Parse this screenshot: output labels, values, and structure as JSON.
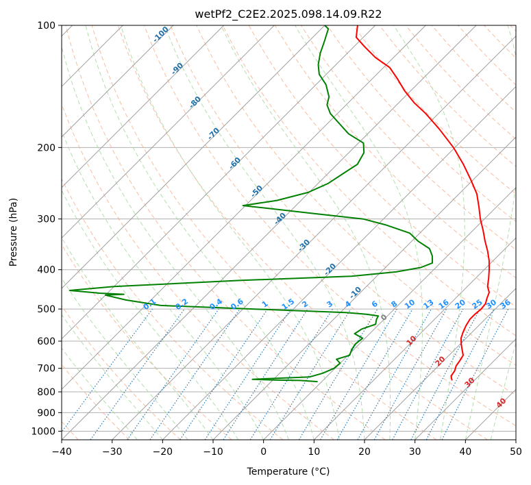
{
  "chart_data": {
    "type": "skew-t",
    "title": "wetPf2_C2E2.2025.098.14.09.R22",
    "xlabel": "Temperature (°C)",
    "ylabel": "Pressure (hPa)",
    "xlim": [
      -40,
      50
    ],
    "ylim": [
      1050,
      100
    ],
    "y_scale": "log",
    "x_ticks": [
      -40,
      -30,
      -20,
      -10,
      0,
      10,
      20,
      30,
      40,
      50
    ],
    "x_tick_labels": [
      "−40",
      "−30",
      "−20",
      "−10",
      "0",
      "10",
      "20",
      "30",
      "40",
      "50"
    ],
    "y_ticks": [
      100,
      200,
      300,
      400,
      500,
      600,
      700,
      800,
      900,
      1000
    ],
    "y_tick_labels": [
      "100",
      "200",
      "300",
      "400",
      "500",
      "600",
      "700",
      "800",
      "900",
      "1000"
    ],
    "grid": true,
    "series": [
      {
        "kind": "temperature",
        "color": "#ff0000",
        "points": [
          [
            25.6,
            750
          ],
          [
            25.0,
            740
          ],
          [
            24.5,
            730
          ],
          [
            24.2,
            710
          ],
          [
            23.5,
            690
          ],
          [
            23.2,
            670
          ],
          [
            22.8,
            650
          ],
          [
            21.5,
            630
          ],
          [
            20.2,
            610
          ],
          [
            19.0,
            590
          ],
          [
            18.2,
            570
          ],
          [
            17.5,
            550
          ],
          [
            17.0,
            530
          ],
          [
            17.0,
            515
          ],
          [
            17.2,
            500
          ],
          [
            17.0,
            485
          ],
          [
            16.2,
            470
          ],
          [
            15.5,
            455
          ],
          [
            14.0,
            440
          ],
          [
            12.6,
            420
          ],
          [
            11.0,
            400
          ],
          [
            9.2,
            380
          ],
          [
            7.0,
            360
          ],
          [
            4.5,
            340
          ],
          [
            2.0,
            320
          ],
          [
            -0.8,
            300
          ],
          [
            -3.5,
            280
          ],
          [
            -6.5,
            260
          ],
          [
            -10.5,
            240
          ],
          [
            -15.0,
            220
          ],
          [
            -20.3,
            200
          ],
          [
            -26.8,
            180
          ],
          [
            -32.5,
            165
          ],
          [
            -37.0,
            155
          ],
          [
            -41.2,
            145
          ],
          [
            -45.2,
            135
          ],
          [
            -48.8,
            127
          ],
          [
            -53.6,
            120
          ],
          [
            -57.8,
            113
          ],
          [
            -61.4,
            107
          ],
          [
            -63.5,
            100
          ]
        ]
      },
      {
        "kind": "dewpoint",
        "color": "#008000",
        "points": [
          [
            -0.8,
            755
          ],
          [
            -4.5,
            750
          ],
          [
            -9.8,
            748
          ],
          [
            -14.2,
            745
          ],
          [
            -8.8,
            740
          ],
          [
            -3.3,
            735
          ],
          [
            -1.5,
            720
          ],
          [
            -0.2,
            700
          ],
          [
            0.0,
            680
          ],
          [
            -1.5,
            665
          ],
          [
            0.3,
            650
          ],
          [
            -0.4,
            630
          ],
          [
            -0.8,
            610
          ],
          [
            -0.5,
            590
          ],
          [
            -3.0,
            575
          ],
          [
            -2.5,
            560
          ],
          [
            -0.7,
            545
          ],
          [
            -1.5,
            530
          ],
          [
            -1.8,
            520
          ],
          [
            -4.5,
            515
          ],
          [
            -9.0,
            510
          ],
          [
            -28.0,
            500
          ],
          [
            -47.0,
            490
          ],
          [
            -55.0,
            475
          ],
          [
            -60.0,
            462
          ],
          [
            -56.5,
            460
          ],
          [
            -61.5,
            457
          ],
          [
            -68.0,
            450
          ],
          [
            -60.0,
            440
          ],
          [
            -36.0,
            425
          ],
          [
            -15.0,
            415
          ],
          [
            -7.0,
            405
          ],
          [
            -3.0,
            395
          ],
          [
            -1.6,
            385
          ],
          [
            -3.0,
            370
          ],
          [
            -5.0,
            355
          ],
          [
            -8.8,
            340
          ],
          [
            -12.0,
            325
          ],
          [
            -18.5,
            310
          ],
          [
            -24.0,
            300
          ],
          [
            -36.0,
            290
          ],
          [
            -45.5,
            282
          ],
          [
            -50.5,
            278
          ],
          [
            -44.8,
            270
          ],
          [
            -40.2,
            258
          ],
          [
            -38.0,
            245
          ],
          [
            -37.0,
            232
          ],
          [
            -36.0,
            220
          ],
          [
            -37.0,
            206
          ],
          [
            -39.0,
            195
          ],
          [
            -43.8,
            185
          ],
          [
            -47.5,
            175
          ],
          [
            -51.4,
            165
          ],
          [
            -53.8,
            157
          ],
          [
            -55.0,
            150
          ],
          [
            -58.0,
            140
          ],
          [
            -61.4,
            132
          ],
          [
            -63.5,
            125
          ],
          [
            -65.4,
            117
          ],
          [
            -66.8,
            110
          ],
          [
            -68.6,
            102
          ],
          [
            -70.0,
            100
          ]
        ]
      }
    ],
    "mixing_ratio_labels": [
      "0.1",
      "0.2",
      "0.4",
      "0.6",
      "1",
      "1.5",
      "2",
      "3",
      "4",
      "6",
      "8",
      "10",
      "13",
      "16",
      "20",
      "25",
      "30",
      "36"
    ],
    "mixing_ratio_values": [
      0.1,
      0.2,
      0.4,
      0.6,
      1,
      1.5,
      2,
      3,
      4,
      6,
      8,
      10,
      13,
      16,
      20,
      25,
      30,
      36
    ],
    "isotherm_labels_blue": [
      "-100",
      "-90",
      "-80",
      "-70",
      "-60",
      "-50",
      "-40",
      "-30",
      "-20",
      "-10"
    ],
    "isotherm_labels_red": [
      "10",
      "20",
      "30",
      "40"
    ],
    "isotherm_zero_label": "0",
    "colors": {
      "temperature": "#ff0000",
      "dewpoint": "#008000",
      "dry_adiabat": "#f4a582",
      "moist_adiabat": "#a6d7a0",
      "mixing_ratio": "#1f77b4",
      "mixing_label": "#1e90ff",
      "iso_label_blue": "#1f6fa8",
      "iso_label_red": "#d62728",
      "iso_label_zero": "#808080",
      "isotherm": "#a0a0a0",
      "grid": "#b0b0b0",
      "dry_adiabat_far": "#d8c8b4"
    }
  }
}
